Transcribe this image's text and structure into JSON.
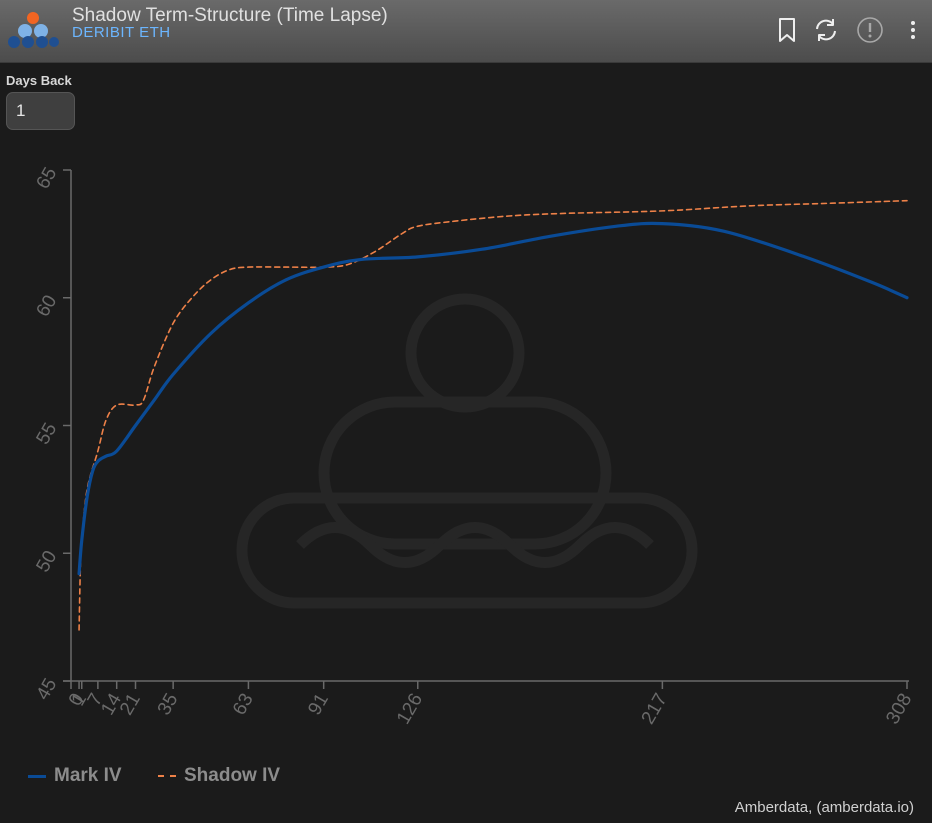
{
  "header": {
    "title": "Shadow Term-Structure (Time Lapse)",
    "subtitle": "DERIBIT ETH",
    "icons": [
      "logo-icon",
      "bookmark-icon",
      "refresh-icon",
      "alert-icon",
      "more-vertical-icon"
    ]
  },
  "controls": {
    "days_back_label": "Days Back",
    "days_back_value": "1"
  },
  "colors": {
    "mark_iv": "#0a4b96",
    "shadow_iv": "#ee8148",
    "background": "#1b1b1b",
    "axis": "#6a6a6a"
  },
  "chart_data": {
    "type": "line",
    "title": "",
    "xlabel": "",
    "ylabel": "",
    "x_ticks": [
      0,
      1,
      7,
      14,
      21,
      35,
      63,
      91,
      126,
      217,
      308
    ],
    "y_ticks": [
      45,
      50,
      55,
      60,
      65
    ],
    "xlim": [
      -3,
      308
    ],
    "ylim": [
      45,
      65
    ],
    "grid": false,
    "legend_position": "bottom-left",
    "series": [
      {
        "name": "Mark IV",
        "style": "solid",
        "points": [
          [
            0,
            49.2
          ],
          [
            1,
            50.5
          ],
          [
            3,
            52.2
          ],
          [
            5,
            53.2
          ],
          [
            7,
            53.6
          ],
          [
            10,
            53.8
          ],
          [
            14,
            54.0
          ],
          [
            21,
            55.0
          ],
          [
            28,
            56.0
          ],
          [
            35,
            57.0
          ],
          [
            49,
            58.6
          ],
          [
            63,
            59.8
          ],
          [
            77,
            60.7
          ],
          [
            91,
            61.2
          ],
          [
            105,
            61.5
          ],
          [
            126,
            61.6
          ],
          [
            150,
            61.9
          ],
          [
            175,
            62.4
          ],
          [
            200,
            62.8
          ],
          [
            217,
            62.9
          ],
          [
            240,
            62.6
          ],
          [
            270,
            61.6
          ],
          [
            295,
            60.6
          ],
          [
            308,
            60.0
          ]
        ]
      },
      {
        "name": "Shadow IV",
        "style": "dashed",
        "points": [
          [
            0,
            47.0
          ],
          [
            0.5,
            49.5
          ],
          [
            1,
            50.5
          ],
          [
            3,
            52.5
          ],
          [
            7,
            54.0
          ],
          [
            10,
            55.2
          ],
          [
            14,
            55.8
          ],
          [
            21,
            55.8
          ],
          [
            24,
            56.0
          ],
          [
            28,
            57.3
          ],
          [
            35,
            59.0
          ],
          [
            42,
            60.0
          ],
          [
            49,
            60.7
          ],
          [
            56,
            61.1
          ],
          [
            63,
            61.2
          ],
          [
            77,
            61.2
          ],
          [
            91,
            61.2
          ],
          [
            100,
            61.3
          ],
          [
            110,
            61.8
          ],
          [
            120,
            62.5
          ],
          [
            126,
            62.8
          ],
          [
            140,
            63.0
          ],
          [
            160,
            63.2
          ],
          [
            180,
            63.3
          ],
          [
            217,
            63.4
          ],
          [
            250,
            63.6
          ],
          [
            280,
            63.7
          ],
          [
            308,
            63.8
          ]
        ]
      }
    ]
  },
  "footer": {
    "credit": "Amberdata, (amberdata.io)"
  }
}
